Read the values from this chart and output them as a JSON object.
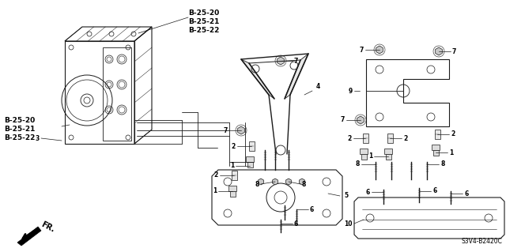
{
  "bg_color": "#ffffff",
  "fig_width": 6.4,
  "fig_height": 3.19,
  "dpi": 100,
  "part_labels_top": [
    "B-25-20",
    "B-25-21",
    "B-25-22"
  ],
  "part_labels_left": [
    "B-25-20",
    "B-25-21",
    "B-25-22"
  ],
  "ref_code": "S3V4-B2420C",
  "direction_label": "FR.",
  "line_color": "#1a1a1a",
  "font_size": 5.5
}
